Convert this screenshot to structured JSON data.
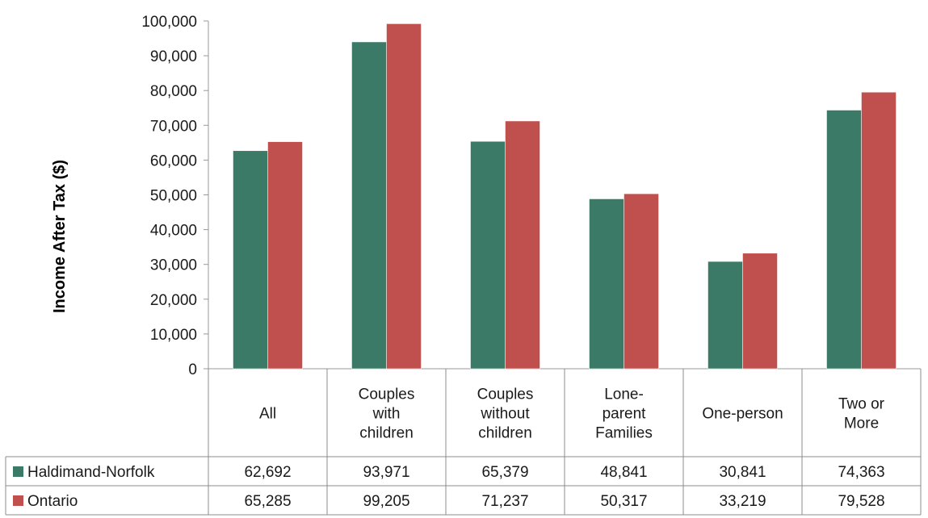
{
  "chart_data": {
    "type": "bar",
    "ylabel": "Income After Tax ($)",
    "xlabel": "",
    "title": "",
    "ylim": [
      0,
      100000
    ],
    "yticks": [
      0,
      10000,
      20000,
      30000,
      40000,
      50000,
      60000,
      70000,
      80000,
      90000,
      100000
    ],
    "ytick_labels": [
      "0",
      "10,000",
      "20,000",
      "30,000",
      "40,000",
      "50,000",
      "60,000",
      "70,000",
      "80,000",
      "90,000",
      "100,000"
    ],
    "categories": [
      [
        "All"
      ],
      [
        "Couples",
        "with",
        "children"
      ],
      [
        "Couples",
        "without",
        "children"
      ],
      [
        "Lone-",
        "parent",
        "Families"
      ],
      [
        "One-person"
      ],
      [
        "Two or",
        "More"
      ]
    ],
    "series": [
      {
        "name": "Haldimand-Norfolk",
        "color": "#3a7a67",
        "values": [
          62692,
          93971,
          65379,
          48841,
          30841,
          74363
        ],
        "labels": [
          "62,692",
          "93,971",
          "65,379",
          "48,841",
          "30,841",
          "74,363"
        ]
      },
      {
        "name": "Ontario",
        "color": "#c0504d",
        "values": [
          65285,
          99205,
          71237,
          50317,
          33219,
          79528
        ],
        "labels": [
          "65,285",
          "99,205",
          "71,237",
          "50,317",
          "33,219",
          "79,528"
        ]
      }
    ],
    "legend": "data-table"
  }
}
